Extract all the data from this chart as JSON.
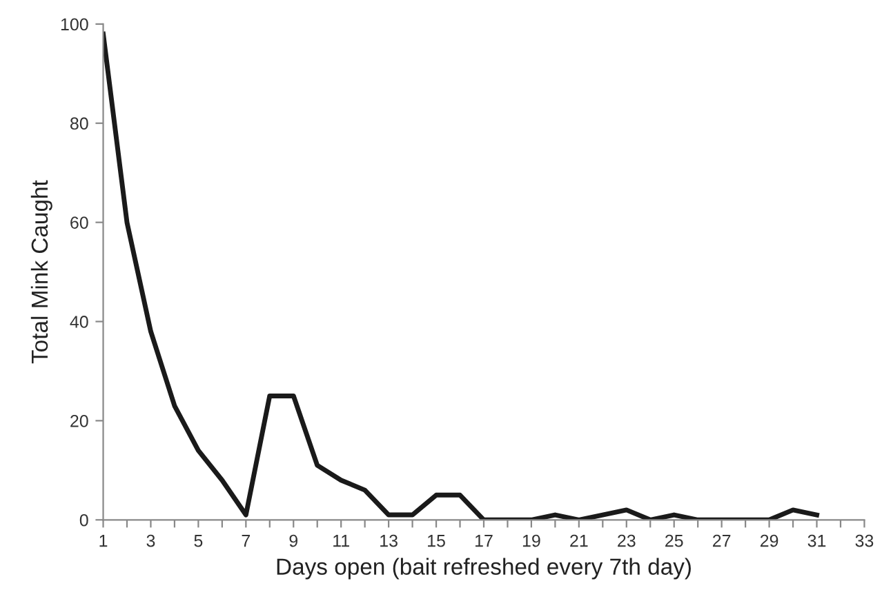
{
  "chart_data": {
    "type": "line",
    "xlabel": "Days open (bait refreshed every 7th day)",
    "ylabel": "Total Mink Caught",
    "x": [
      1,
      2,
      3,
      4,
      5,
      6,
      7,
      8,
      9,
      10,
      11,
      12,
      13,
      14,
      15,
      16,
      17,
      18,
      19,
      20,
      21,
      22,
      23,
      24,
      25,
      26,
      27,
      28,
      29,
      30,
      31
    ],
    "series": [
      {
        "color": "#1a1a1a",
        "values": [
          98,
          60,
          38,
          23,
          14,
          8,
          1,
          25,
          25,
          11,
          8,
          6,
          1,
          1,
          5,
          5,
          0,
          0,
          0,
          1,
          0,
          1,
          2,
          0,
          1,
          0,
          0,
          0,
          0,
          2,
          1
        ]
      }
    ],
    "xlim": [
      1,
      33
    ],
    "xticks": [
      1,
      {
        "value": 2,
        "label": null
      },
      3,
      {
        "value": 4,
        "label": null
      },
      5,
      {
        "value": 6,
        "label": null
      },
      7,
      {
        "value": 8,
        "label": null
      },
      9,
      {
        "value": 10,
        "label": null
      },
      11,
      {
        "value": 12,
        "label": null
      },
      13,
      {
        "value": 14,
        "label": null
      },
      15,
      {
        "value": 16,
        "label": null
      },
      17,
      {
        "value": 18,
        "label": null
      },
      19,
      {
        "value": 20,
        "label": null
      },
      21,
      {
        "value": 22,
        "label": null
      },
      23,
      {
        "value": 24,
        "label": null
      },
      25,
      {
        "value": 26,
        "label": null
      },
      27,
      {
        "value": 28,
        "label": null
      },
      29,
      {
        "value": 30,
        "label": null
      },
      31,
      {
        "value": 32,
        "label": null
      },
      33
    ],
    "ylim": [
      0,
      100
    ],
    "yticks": [
      0,
      20,
      40,
      60,
      80,
      100
    ],
    "grid": false,
    "legend": false,
    "marker": "none",
    "line_style": "solid"
  }
}
